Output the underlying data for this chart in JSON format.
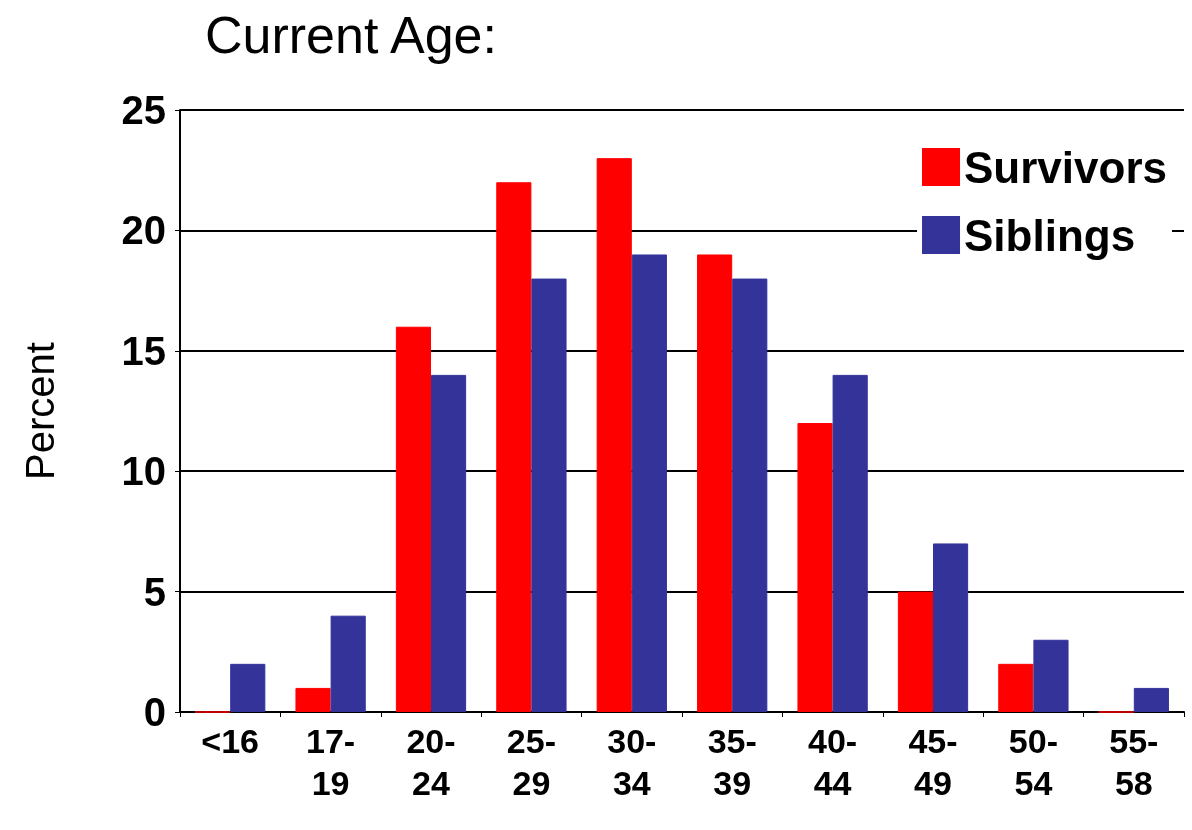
{
  "chart_data": {
    "type": "bar",
    "title": "Current Age:",
    "ylabel": "Percent",
    "categories": [
      "<16",
      "17-19",
      "20-24",
      "25-29",
      "30-34",
      "35-39",
      "40-44",
      "45-49",
      "50-54",
      "55-58"
    ],
    "series": [
      {
        "name": "Survivors",
        "color": "#ff0000",
        "values": [
          0,
          1,
          16,
          22,
          23,
          19,
          12,
          5,
          2,
          0
        ]
      },
      {
        "name": "Siblings",
        "color": "#333399",
        "values": [
          2,
          4,
          14,
          18,
          19,
          18,
          14,
          7,
          3,
          1
        ]
      }
    ],
    "ylim": [
      0,
      25
    ],
    "yticks": [
      0,
      5,
      10,
      15,
      20,
      25
    ],
    "grid": "y",
    "legend": "top right"
  }
}
